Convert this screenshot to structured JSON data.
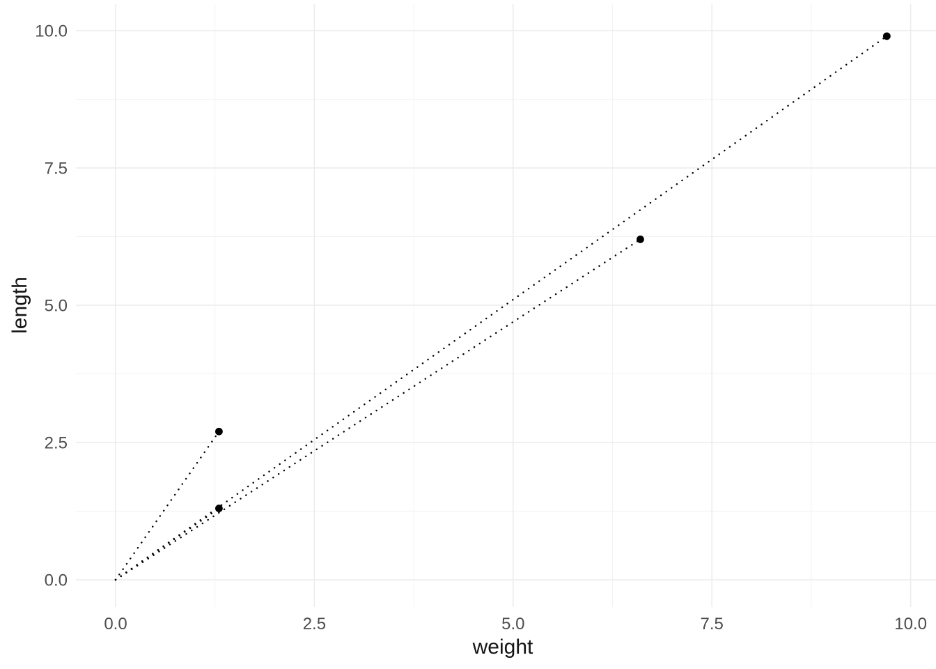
{
  "chart_data": {
    "type": "scatter",
    "title": "",
    "xlabel": "weight",
    "ylabel": "length",
    "x_tick_labels": [
      "0.0",
      "2.5",
      "5.0",
      "7.5",
      "10.0"
    ],
    "x_tick_values": [
      0,
      2.5,
      5,
      7.5,
      10
    ],
    "y_tick_labels": [
      "0.0",
      "2.5",
      "5.0",
      "7.5",
      "10.0"
    ],
    "y_tick_values": [
      0,
      2.5,
      5,
      7.5,
      10
    ],
    "x_minor_tick_values": [
      1.25,
      3.75,
      6.25,
      8.75
    ],
    "y_minor_tick_values": [
      1.25,
      3.75,
      6.25,
      8.75
    ],
    "xlim": [
      -0.5,
      10.5
    ],
    "ylim": [
      -0.5,
      10.5
    ],
    "grid": "on",
    "legend_position": "none",
    "points": [
      {
        "weight": 1.3,
        "length": 2.7
      },
      {
        "weight": 1.3,
        "length": 1.3
      },
      {
        "weight": 6.6,
        "length": 6.2
      },
      {
        "weight": 9.7,
        "length": 9.9
      }
    ],
    "segments_from_origin": [
      {
        "x1": 0,
        "y1": 0,
        "x2": 1.3,
        "y2": 2.7
      },
      {
        "x1": 0,
        "y1": 0,
        "x2": 1.3,
        "y2": 1.3
      },
      {
        "x1": 0,
        "y1": 0,
        "x2": 6.6,
        "y2": 6.2
      },
      {
        "x1": 0,
        "y1": 0,
        "x2": 9.7,
        "y2": 9.9
      }
    ],
    "line_style": "dotted",
    "colors": {
      "point": "#000000",
      "segment": "#000000",
      "grid_major": "#EBEBEB",
      "grid_minor": "#F2F2F2",
      "axis_text": "#4D4D4D",
      "axis_title": "#141414",
      "background": "#FFFFFF"
    }
  }
}
